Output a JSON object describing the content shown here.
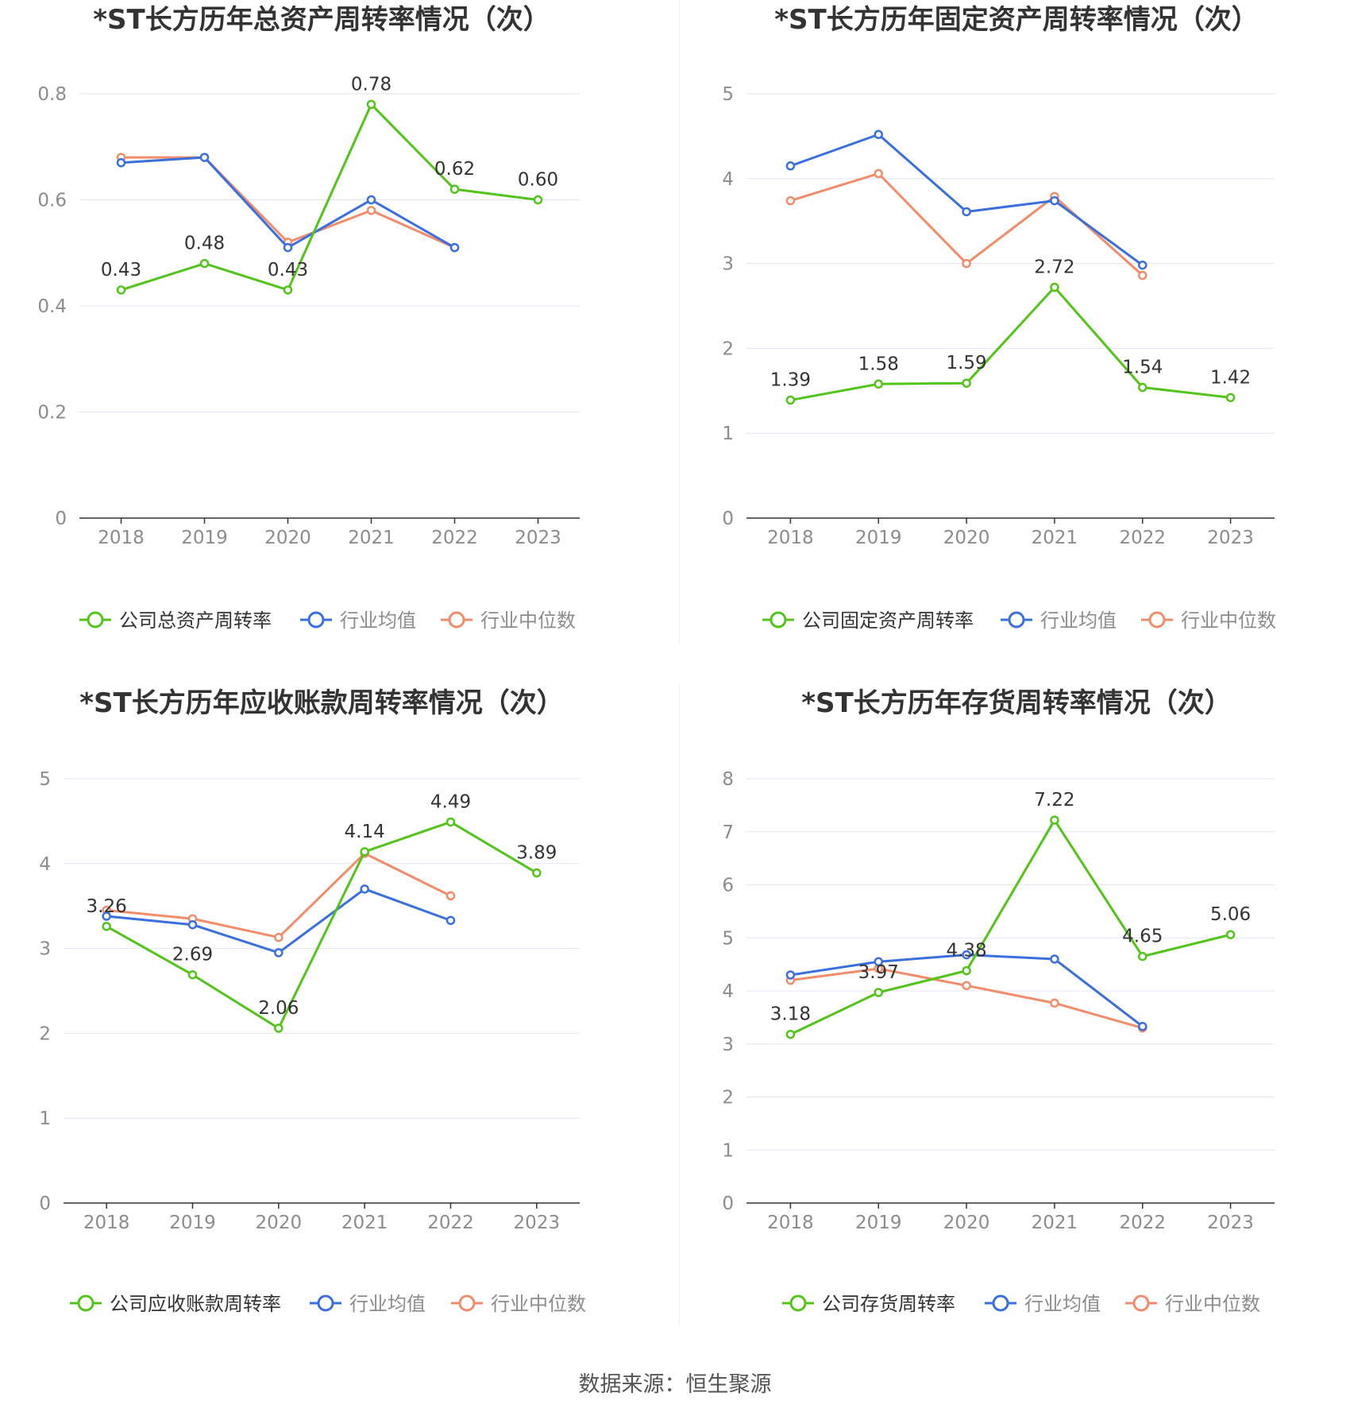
{
  "footer": {
    "source": "数据来源：恒生聚源"
  },
  "colors": {
    "company": "#52c41a",
    "avg": "#3b6fde",
    "median": "#f28c6a",
    "grid": "#e0e6f1",
    "axis": "#333333"
  },
  "chart_data": [
    {
      "type": "line",
      "title": "*ST长方历年总资产周转率情况（次）",
      "categories": [
        "2018",
        "2019",
        "2020",
        "2021",
        "2022",
        "2023"
      ],
      "ylim": [
        0,
        0.8
      ],
      "yticks": [
        0,
        0.2,
        0.4,
        0.6,
        0.8
      ],
      "ytick_labels": [
        "0",
        "0.2",
        "0.4",
        "0.6",
        "0.8"
      ],
      "grid": true,
      "legend": "bottom",
      "series": [
        {
          "name": "公司总资产周转率",
          "values": [
            0.43,
            0.48,
            0.43,
            0.78,
            0.62,
            0.6
          ],
          "labels": [
            "0.43",
            "0.48",
            "0.43",
            "0.78",
            "0.62",
            "0.60"
          ]
        },
        {
          "name": "行业均值",
          "values": [
            0.67,
            0.68,
            0.51,
            0.6,
            0.51,
            null
          ]
        },
        {
          "name": "行业中位数",
          "values": [
            0.68,
            0.68,
            0.52,
            0.58,
            0.51,
            null
          ]
        }
      ]
    },
    {
      "type": "line",
      "title": "*ST长方历年固定资产周转率情况（次）",
      "categories": [
        "2018",
        "2019",
        "2020",
        "2021",
        "2022",
        "2023"
      ],
      "ylim": [
        0,
        5
      ],
      "yticks": [
        0,
        1,
        2,
        3,
        4,
        5
      ],
      "ytick_labels": [
        "0",
        "1",
        "2",
        "3",
        "4",
        "5"
      ],
      "grid": true,
      "legend": "bottom",
      "series": [
        {
          "name": "公司固定资产周转率",
          "values": [
            1.39,
            1.58,
            1.59,
            2.72,
            1.54,
            1.42
          ],
          "labels": [
            "1.39",
            "1.58",
            "1.59",
            "2.72",
            "1.54",
            "1.42"
          ]
        },
        {
          "name": "行业均值",
          "values": [
            4.15,
            4.52,
            3.61,
            3.74,
            2.98,
            null
          ]
        },
        {
          "name": "行业中位数",
          "values": [
            3.74,
            4.06,
            3.0,
            3.79,
            2.86,
            null
          ]
        }
      ]
    },
    {
      "type": "line",
      "title": "*ST长方历年应收账款周转率情况（次）",
      "categories": [
        "2018",
        "2019",
        "2020",
        "2021",
        "2022",
        "2023"
      ],
      "ylim": [
        0,
        5
      ],
      "yticks": [
        0,
        1,
        2,
        3,
        4,
        5
      ],
      "ytick_labels": [
        "0",
        "1",
        "2",
        "3",
        "4",
        "5"
      ],
      "grid": true,
      "legend": "bottom",
      "series": [
        {
          "name": "公司应收账款周转率",
          "values": [
            3.26,
            2.69,
            2.06,
            4.14,
            4.49,
            3.89
          ],
          "labels": [
            "3.26",
            "2.69",
            "2.06",
            "4.14",
            "4.49",
            "3.89"
          ]
        },
        {
          "name": "行业均值",
          "values": [
            3.38,
            3.28,
            2.95,
            3.7,
            3.33,
            null
          ]
        },
        {
          "name": "行业中位数",
          "values": [
            3.45,
            3.35,
            3.13,
            4.12,
            3.62,
            null
          ]
        }
      ]
    },
    {
      "type": "line",
      "title": "*ST长方历年存货周转率情况（次）",
      "categories": [
        "2018",
        "2019",
        "2020",
        "2021",
        "2022",
        "2023"
      ],
      "ylim": [
        0,
        8
      ],
      "yticks": [
        0,
        1,
        2,
        3,
        4,
        5,
        6,
        7,
        8
      ],
      "ytick_labels": [
        "0",
        "1",
        "2",
        "3",
        "4",
        "5",
        "6",
        "7",
        "8"
      ],
      "grid": true,
      "legend": "bottom",
      "series": [
        {
          "name": "公司存货周转率",
          "values": [
            3.18,
            3.97,
            4.38,
            7.22,
            4.65,
            5.06
          ],
          "labels": [
            "3.18",
            "3.97",
            "4.38",
            "7.22",
            "4.65",
            "5.06"
          ]
        },
        {
          "name": "行业均值",
          "values": [
            4.3,
            4.55,
            4.68,
            4.6,
            3.33,
            null
          ]
        },
        {
          "name": "行业中位数",
          "values": [
            4.2,
            4.42,
            4.1,
            3.77,
            3.3,
            null
          ]
        }
      ]
    }
  ]
}
